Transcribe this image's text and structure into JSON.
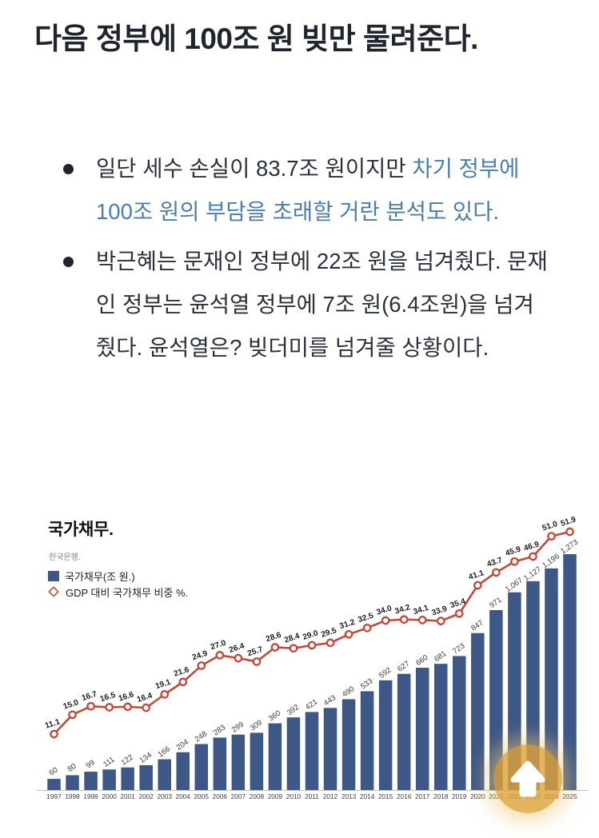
{
  "heading": {
    "text": "다음 정부에 100조 원 빚만 물려준다."
  },
  "bullets": [
    {
      "pre": "일단 세수 손실이 83.7조 원이지만 ",
      "link": "차기 정부에 100조 원의 부담을 초래할 거란 분석도 있다."
    },
    {
      "text": "박근혜는 문재인 정부에 22조 원을 넘겨줬다. 문재인 정부는 윤석열 정부에 7조 원(6.4조원)을 넘겨줬다. 윤석열은? 빚더미를 넘겨줄 상황이다."
    }
  ],
  "chart": {
    "title": "국가채무.",
    "source": "한국은행.",
    "legend_bar": "국가채무(조 원.)",
    "legend_line": "GDP 대비 국가채무 비중 %."
  },
  "chart_data": {
    "type": "bar",
    "title": "국가채무.",
    "source": "한국은행.",
    "legend_position": "top-left",
    "grid": false,
    "categories": [
      1997,
      1998,
      1999,
      2000,
      2001,
      2002,
      2003,
      2004,
      2005,
      2006,
      2007,
      2008,
      2009,
      2010,
      2011,
      2012,
      2013,
      2014,
      2015,
      2016,
      2017,
      2018,
      2019,
      2020,
      2021,
      2022,
      2023,
      2024,
      2025
    ],
    "series": [
      {
        "name": "국가채무(조 원.)",
        "type": "bar",
        "color": "#3d5787",
        "ylim": [
          0,
          1350
        ],
        "values": [
          60,
          80,
          99,
          111,
          122,
          134,
          166,
          204,
          248,
          283,
          299,
          309,
          360,
          392,
          421,
          443,
          490,
          533,
          592,
          627,
          660,
          681,
          723,
          847,
          971,
          1067,
          1127,
          1196,
          1273
        ]
      },
      {
        "name": "GDP 대비 국가채무 비중 %.",
        "type": "line",
        "color": "#c3493a",
        "ylim": [
          0,
          60
        ],
        "values": [
          11.1,
          15.0,
          16.7,
          16.5,
          16.6,
          16.4,
          19.1,
          21.6,
          24.9,
          27.0,
          26.4,
          25.7,
          28.6,
          28.4,
          29.0,
          29.5,
          31.2,
          32.5,
          34.0,
          34.2,
          34.1,
          33.9,
          35.4,
          41.1,
          43.7,
          45.9,
          46.9,
          51.0,
          51.9
        ]
      }
    ]
  },
  "colors": {
    "text": "#262b36",
    "link": "#4a7db1",
    "bar": "#3d5787",
    "line": "#c3493a",
    "scroll_button": "#e0a53c"
  },
  "scroll_top": {
    "icon": "up-arrow"
  }
}
